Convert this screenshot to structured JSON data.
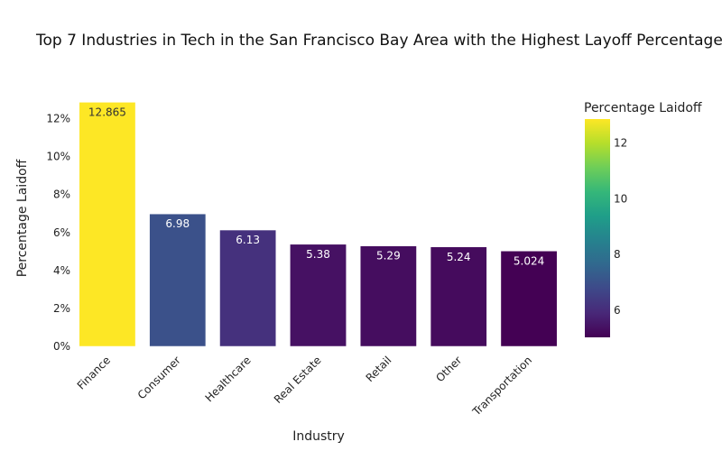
{
  "chart_data": {
    "type": "bar",
    "title": "Top 7 Industries in Tech in the San Francisco Bay Area with the Highest Layoff Percentage",
    "xlabel": "Industry",
    "ylabel": "Percentage Laidoff",
    "categories": [
      "Finance",
      "Consumer",
      "Healthcare",
      "Real Estate",
      "Retail",
      "Other",
      "Transportation"
    ],
    "values": [
      12.865,
      6.98,
      6.13,
      5.38,
      5.29,
      5.24,
      5.024
    ],
    "value_labels": [
      "12.865",
      "6.98",
      "6.13",
      "5.38",
      "5.29",
      "5.24",
      "5.024"
    ],
    "ylim": [
      0,
      13.5
    ],
    "yticks": [
      0,
      2,
      4,
      6,
      8,
      10,
      12
    ],
    "ytick_labels": [
      "0%",
      "2%",
      "4%",
      "6%",
      "8%",
      "10%",
      "12%"
    ],
    "colorscale": "viridis",
    "colorbar": {
      "title": "Percentage Laidoff",
      "range": [
        5.024,
        12.865
      ],
      "ticks": [
        6,
        8,
        10,
        12
      ],
      "tick_labels": [
        "6",
        "8",
        "10",
        "12"
      ]
    },
    "legend": "colorbar-right",
    "grid": false
  }
}
